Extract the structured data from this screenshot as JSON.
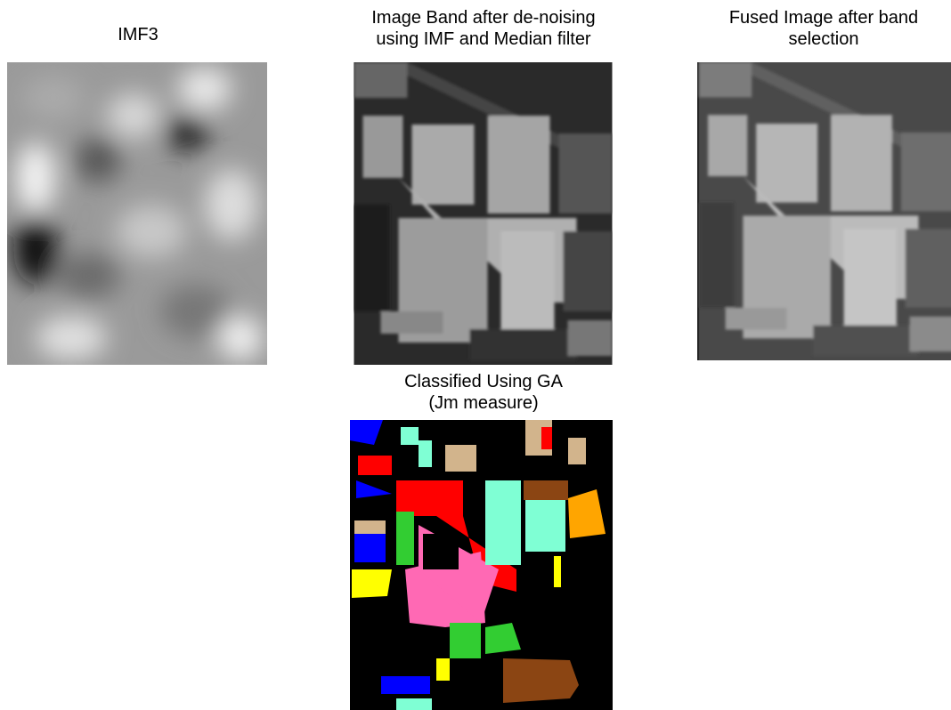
{
  "panels": [
    {
      "title": [
        "IMF3"
      ]
    },
    {
      "title": [
        "Image Band after de-noising",
        "using IMF and Median filter"
      ]
    },
    {
      "title": [
        "Fused Image after band",
        "selection"
      ]
    },
    {
      "title": [
        "Classified Using GA",
        "(Jm measure)"
      ]
    }
  ]
}
